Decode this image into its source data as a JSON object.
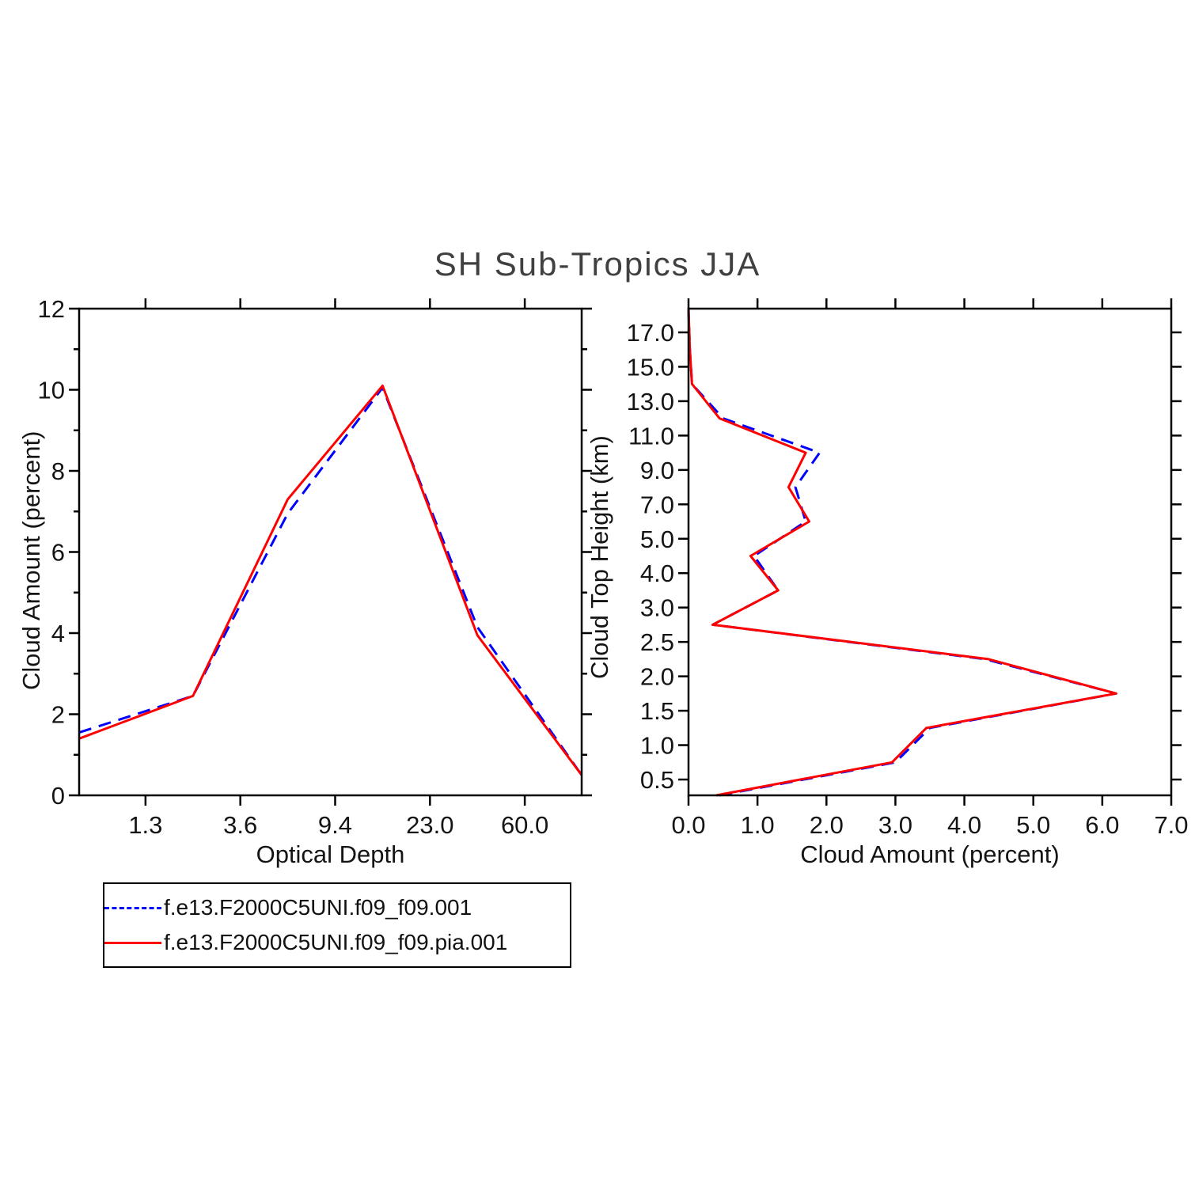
{
  "title": "SH Sub-Tropics JJA",
  "legend": {
    "entries": [
      {
        "label": "f.e13.F2000C5UNI.f09_f09.001",
        "color": "#0000ff",
        "style": "dashed"
      },
      {
        "label": "f.e13.F2000C5UNI.f09_f09.pia.001",
        "color": "#ff0000",
        "style": "solid"
      }
    ]
  },
  "chart_data": [
    {
      "type": "line",
      "panel": "left",
      "xlabel": "Optical Depth",
      "ylabel": "Cloud Amount (percent)",
      "xlim": [
        0.3,
        5.6
      ],
      "ylim": [
        0,
        12
      ],
      "x_tick_positions": [
        1,
        2,
        3,
        4,
        5
      ],
      "x_tick_labels": [
        "1.3",
        "3.6",
        "9.4",
        "23.0",
        "60.0"
      ],
      "y_tick_positions": [
        0,
        2,
        4,
        6,
        8,
        10,
        12
      ],
      "y_tick_labels": [
        "0",
        "2",
        "4",
        "6",
        "8",
        "10",
        "12"
      ],
      "y_minor_positions": [
        1,
        3,
        5,
        7,
        9,
        11
      ],
      "x": [
        0.3,
        1.5,
        2.5,
        3.5,
        4.5,
        5.6
      ],
      "series": [
        {
          "name": "f.e13.F2000C5UNI.f09_f09.001",
          "color": "#0000ff",
          "dash": true,
          "values": [
            1.55,
            2.45,
            6.95,
            10.05,
            4.15,
            0.5
          ]
        },
        {
          "name": "f.e13.F2000C5UNI.f09_f09.pia.001",
          "color": "#ff0000",
          "dash": false,
          "values": [
            1.4,
            2.45,
            7.3,
            10.1,
            3.95,
            0.5
          ]
        }
      ]
    },
    {
      "type": "line",
      "panel": "right",
      "xlabel": "Cloud Amount (percent)",
      "ylabel": "Cloud Top Height (km)",
      "swap_axes": true,
      "xlim": [
        0,
        7
      ],
      "ylim": [
        0.54,
        14.69
      ],
      "x_tick_positions": [
        0,
        1,
        2,
        3,
        4,
        5,
        6,
        7
      ],
      "x_tick_labels": [
        "0.0",
        "1.0",
        "2.0",
        "3.0",
        "4.0",
        "5.0",
        "6.0",
        "7.0"
      ],
      "y_tick_positions": [
        1,
        2,
        3,
        4,
        5,
        6,
        7,
        8,
        9,
        10,
        11,
        12,
        13,
        14
      ],
      "y_tick_labels": [
        "0.5",
        "1.0",
        "1.5",
        "2.0",
        "2.5",
        "3.0",
        "4.0",
        "5.0",
        "7.0",
        "9.0",
        "11.0",
        "13.0",
        "15.0",
        "17.0"
      ],
      "y": [
        0.54,
        1.5,
        2.5,
        3.5,
        4.5,
        5.5,
        6.5,
        7.5,
        8.5,
        9.5,
        10.5,
        11.5,
        12.5,
        13.5,
        14.69
      ],
      "height_km_bin_centers": [
        0.25,
        0.75,
        1.25,
        1.75,
        2.25,
        2.75,
        3.5,
        4.5,
        6.0,
        8.0,
        10.0,
        12.0,
        14.0,
        16.0,
        17.0
      ],
      "series": [
        {
          "name": "f.e13.F2000C5UNI.f09_f09.001",
          "color": "#0000ff",
          "dash": true,
          "values": [
            0.45,
            3.0,
            3.5,
            6.2,
            4.3,
            0.35,
            1.3,
            0.95,
            1.7,
            1.55,
            1.9,
            0.5,
            0.05,
            0.02,
            0.0
          ]
        },
        {
          "name": "f.e13.F2000C5UNI.f09_f09.pia.001",
          "color": "#ff0000",
          "dash": false,
          "values": [
            0.4,
            2.95,
            3.45,
            6.2,
            4.35,
            0.35,
            1.3,
            0.9,
            1.75,
            1.45,
            1.7,
            0.45,
            0.05,
            0.02,
            0.0
          ]
        }
      ]
    }
  ]
}
